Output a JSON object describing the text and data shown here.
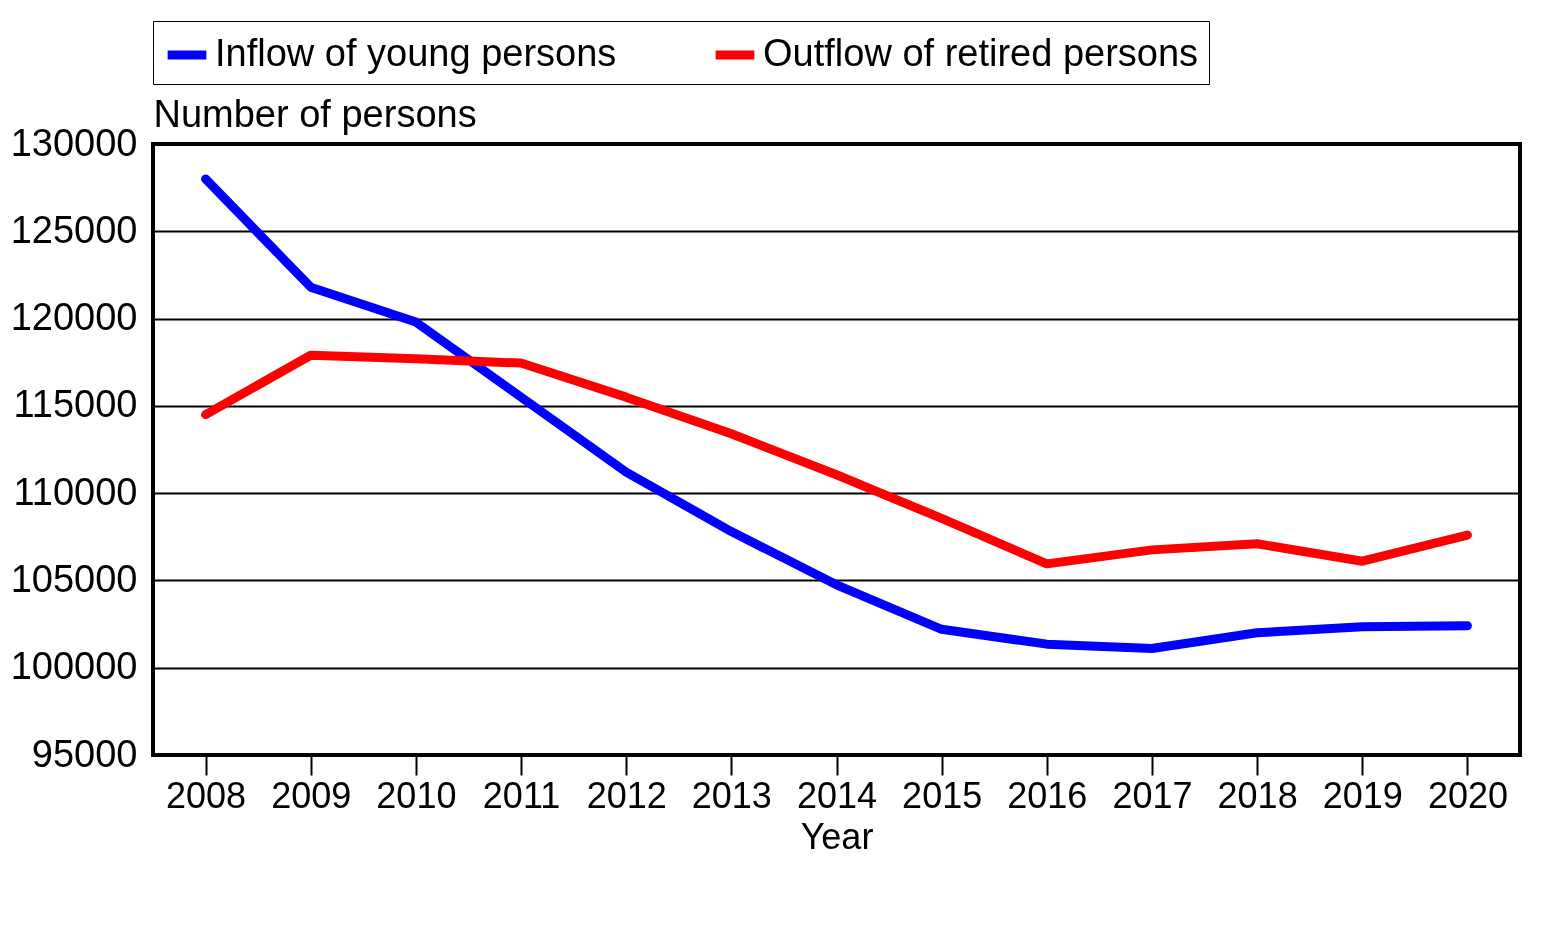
{
  "chart_data": {
    "type": "line",
    "xlabel": "Year",
    "ylabel": "Number of persons",
    "x": [
      2008,
      2009,
      2010,
      2011,
      2012,
      2013,
      2014,
      2015,
      2016,
      2017,
      2018,
      2019,
      2020
    ],
    "series": [
      {
        "name": "Inflow of young persons",
        "color": "#0000ff",
        "values": [
          128000,
          121800,
          119800,
          115500,
          111200,
          107800,
          104750,
          102200,
          101350,
          101100,
          102000,
          102350,
          102400
        ]
      },
      {
        "name": "Outflow of retired persons",
        "color": "#ff0000",
        "values": [
          114500,
          117900,
          117700,
          117450,
          115500,
          113400,
          111050,
          108550,
          105950,
          106750,
          107100,
          106100,
          107600
        ]
      }
    ],
    "xlim": [
      2007.5,
      2020.5
    ],
    "xticks": [
      2008,
      2009,
      2010,
      2011,
      2012,
      2013,
      2014,
      2015,
      2016,
      2017,
      2018,
      2019,
      2020
    ],
    "ylim": [
      95000,
      130000
    ],
    "yticks": [
      95000,
      100000,
      105000,
      110000,
      115000,
      120000,
      125000,
      130000
    ],
    "grid": "y",
    "legend": "top",
    "marker": "none",
    "line_style": "solid"
  }
}
